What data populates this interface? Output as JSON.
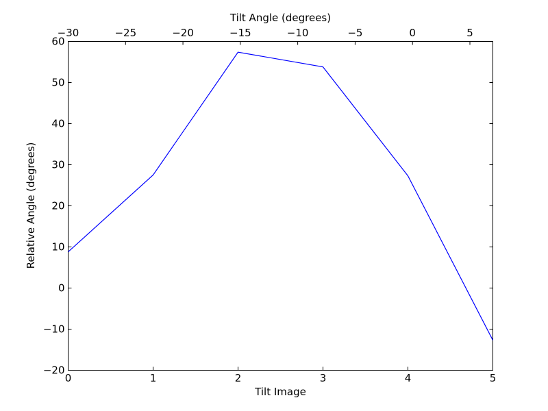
{
  "chart_data": {
    "type": "line",
    "xlabel": "Tilt Image",
    "ylabel": "Relative Angle (degrees)",
    "top_xlabel": "Tilt Angle (degrees)",
    "xlim": [
      0,
      5
    ],
    "ylim": [
      -20,
      60
    ],
    "top_xlim": [
      -30,
      7
    ],
    "x_ticks": [
      "0",
      "1",
      "2",
      "3",
      "4",
      "5"
    ],
    "x_tick_values": [
      0,
      1,
      2,
      3,
      4,
      5
    ],
    "y_ticks": [
      "−20",
      "−10",
      "0",
      "10",
      "20",
      "30",
      "40",
      "50",
      "60"
    ],
    "y_tick_values": [
      -20,
      -10,
      0,
      10,
      20,
      30,
      40,
      50,
      60
    ],
    "top_x_ticks": [
      "−30",
      "−25",
      "−20",
      "−15",
      "−10",
      "−5",
      "0",
      "5"
    ],
    "top_x_tick_values": [
      -30,
      -25,
      -20,
      -15,
      -10,
      -5,
      0,
      5
    ],
    "grid": false,
    "series": [
      {
        "x": [
          0,
          1,
          2,
          3,
          4,
          5
        ],
        "values": [
          8.8,
          27.5,
          57.4,
          53.8,
          27.3,
          -12.7
        ],
        "color": "#0000ff"
      }
    ]
  }
}
